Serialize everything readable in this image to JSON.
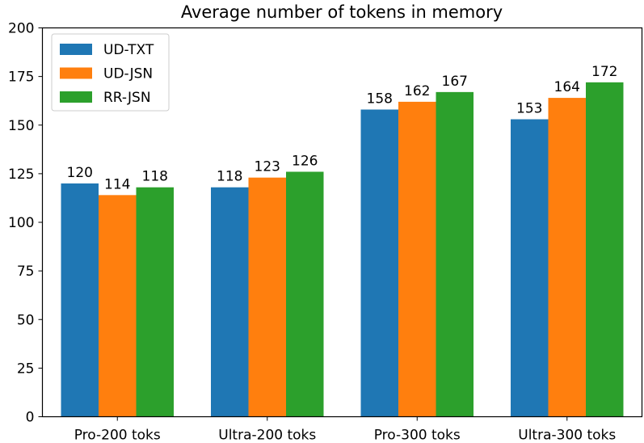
{
  "chart_data": {
    "type": "bar",
    "title": "Average number of tokens in memory",
    "xlabel": "",
    "ylabel": "",
    "categories": [
      "Pro-200 toks",
      "Ultra-200 toks",
      "Pro-300 toks",
      "Ultra-300 toks"
    ],
    "series": [
      {
        "name": "UD-TXT",
        "color": "#1f77b4",
        "values": [
          120,
          118,
          158,
          153
        ]
      },
      {
        "name": "UD-JSN",
        "color": "#ff7f0e",
        "values": [
          114,
          123,
          162,
          164
        ]
      },
      {
        "name": "RR-JSN",
        "color": "#2ca02c",
        "values": [
          118,
          126,
          167,
          172
        ]
      }
    ],
    "ylim": [
      0,
      200
    ],
    "yticks": [
      0,
      25,
      50,
      75,
      100,
      125,
      150,
      175,
      200
    ],
    "grid": false,
    "legend_position": "top-left",
    "data_labels": true
  }
}
